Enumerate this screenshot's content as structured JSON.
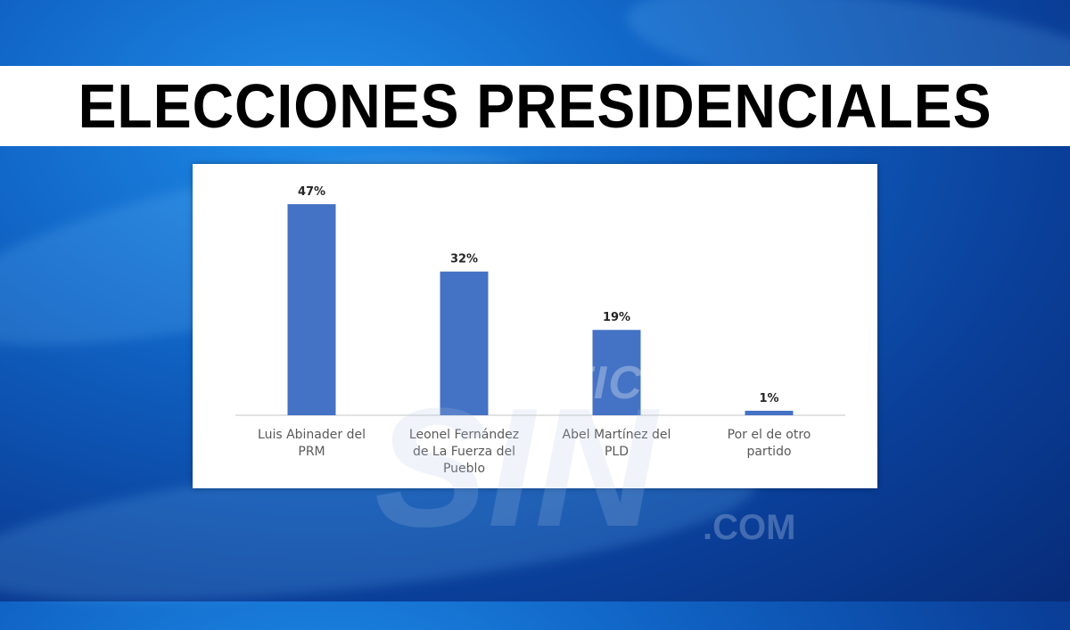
{
  "header": {
    "title": "ELECCIONES PRESIDENCIALES"
  },
  "watermark": {
    "line1": "NOTICIAS",
    "line2": "SIN",
    "line3": ".COM"
  },
  "colors": {
    "bar": "#4472c4",
    "axis": "#d9d9d9",
    "label": "#595959",
    "value_label": "#262626"
  },
  "chart_data": {
    "type": "bar",
    "title": "",
    "xlabel": "",
    "ylabel": "",
    "ylim": [
      0,
      50
    ],
    "grid": false,
    "legend": "none",
    "categories": [
      [
        "Luis Abinader del",
        "PRM"
      ],
      [
        "Leonel Fernández",
        "de La Fuerza del",
        "Pueblo"
      ],
      [
        "Abel Martínez del",
        "PLD"
      ],
      [
        "Por el de otro",
        "partido"
      ]
    ],
    "values": [
      47,
      32,
      19,
      1
    ],
    "value_labels": [
      "47%",
      "32%",
      "19%",
      "1%"
    ]
  }
}
